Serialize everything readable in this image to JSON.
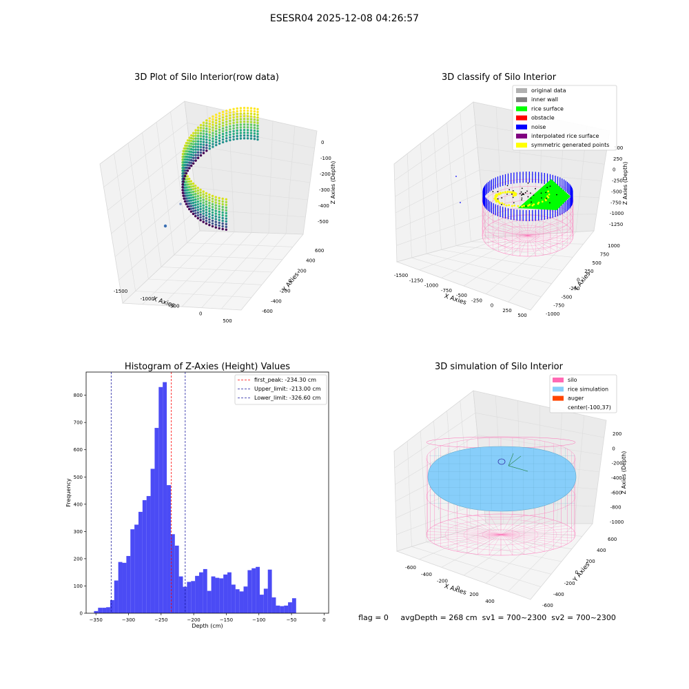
{
  "suptitle": "ESESR04 2025-12-08 04:26:57",
  "footer": "flag = 0     avgDepth = 268 cm  sv1 = 700~2300  sv2 = 700~2300",
  "colors": {
    "hist_bar": "#4b4bf5",
    "peak": "#ff0000",
    "limit": "#1a1aa0",
    "silo": "#ff69b4",
    "rice": "#87cefa",
    "auger": "#ff4500"
  },
  "chart_data": [
    {
      "type": "scatter",
      "title": "3D Plot of Silo Interior(row data)",
      "xlabel": "X Axies",
      "ylabel": "Y Axies",
      "zlabel": "Z Axies (Depth)",
      "xticks": [
        "-1500",
        "-1000",
        "-500",
        "0",
        "500"
      ],
      "yticks": [
        "-600",
        "-400",
        "-200",
        "0",
        "200",
        "400",
        "600"
      ],
      "zticks": [
        "0",
        "-100",
        "-200",
        "-300",
        "-400",
        "-500"
      ],
      "colormap": "viridis"
    },
    {
      "type": "scatter",
      "title": "3D classify of Silo Interior",
      "xlabel": "X Axies",
      "ylabel": "Y Axies",
      "zlabel": "Z Axies (Depth)",
      "xticks": [
        "-1500",
        "-1250",
        "-1000",
        "-750",
        "-500",
        "-250",
        "0",
        "250",
        "500"
      ],
      "yticks": [
        "-1000",
        "-750",
        "-500",
        "-250",
        "0",
        "250",
        "500",
        "750",
        "1000"
      ],
      "zticks": [
        "500",
        "250",
        "0",
        "-250",
        "-500",
        "-750",
        "-1000",
        "-1250"
      ],
      "legend": [
        {
          "label": "original data",
          "color": "#b0b0b0"
        },
        {
          "label": "inner wall",
          "color": "#808080"
        },
        {
          "label": "rice surface",
          "color": "#00ff00"
        },
        {
          "label": "obstacle",
          "color": "#ff0000"
        },
        {
          "label": "noise",
          "color": "#0000ff"
        },
        {
          "label": "interpolated rice surface",
          "color": "#800080"
        },
        {
          "label": "symmetric generated points",
          "color": "#ffff00"
        }
      ]
    },
    {
      "type": "bar",
      "title": "Histogram of Z-Axies (Height) Values",
      "xlabel": "Depth (cm)",
      "ylabel": "Frequency",
      "xlim": [
        -365,
        7
      ],
      "ylim": [
        0,
        885
      ],
      "xticks": [
        -350,
        -300,
        -250,
        -200,
        -150,
        -100,
        -50,
        0
      ],
      "yticks": [
        0,
        100,
        200,
        300,
        400,
        500,
        600,
        700,
        800
      ],
      "bin_width": 6.2,
      "bin_starts": [
        -352.9,
        -346.7,
        -340.5,
        -334.3,
        -328.1,
        -321.9,
        -315.7,
        -309.5,
        -303.3,
        -297.1,
        -290.9,
        -284.7,
        -278.5,
        -272.3,
        -266.1,
        -259.9,
        -253.7,
        -247.5,
        -241.3,
        -235.1,
        -228.9,
        -222.7,
        -216.5,
        -210.3,
        -204.1,
        -197.9,
        -191.7,
        -185.5,
        -179.3,
        -173.1,
        -166.9,
        -160.7,
        -154.5,
        -148.3,
        -142.1,
        -135.9,
        -129.7,
        -123.5,
        -117.3,
        -111.1,
        -104.9,
        -98.7,
        -92.5,
        -86.3,
        -80.1,
        -73.9,
        -67.7,
        -61.5,
        -55.3,
        -49.1,
        -42.9,
        -36.7,
        -30.5,
        -24.3,
        -18.1,
        -11.9,
        -5.7
      ],
      "values": [
        8,
        20,
        20,
        22,
        48,
        120,
        188,
        185,
        210,
        308,
        325,
        372,
        415,
        430,
        530,
        680,
        830,
        848,
        470,
        290,
        248,
        135,
        97,
        115,
        118,
        137,
        150,
        162,
        82,
        135,
        130,
        128,
        142,
        150,
        105,
        88,
        80,
        98,
        158,
        165,
        170,
        68,
        90,
        160,
        58,
        28,
        26,
        28,
        40,
        55,
        0,
        0,
        0,
        0,
        0,
        0,
        0
      ],
      "vlines": [
        {
          "label": "first_peak: -234.30 cm",
          "x": -234.3,
          "color": "#ff0000"
        },
        {
          "label": "Upper_limit: -213.00 cm",
          "x": -213.0,
          "color": "#1a1aa0"
        },
        {
          "label": "Lower_limit: -326.60 cm",
          "x": -326.6,
          "color": "#1a1aa0"
        }
      ]
    },
    {
      "type": "mesh",
      "title": "3D simulation of Silo Interior",
      "xlabel": "X Axies",
      "ylabel": "Y Axies",
      "zlabel": "Z Axies (Depth)",
      "xticks": [
        "-600",
        "-400",
        "-200",
        "0",
        "200",
        "400"
      ],
      "yticks": [
        "-600",
        "-400",
        "-200",
        "0",
        "200",
        "400",
        "600"
      ],
      "zticks": [
        "200",
        "0",
        "-200",
        "-400",
        "-600",
        "-800",
        "-1000"
      ],
      "legend": [
        {
          "label": "silo",
          "color": "#ff69b4"
        },
        {
          "label": "rice simulation",
          "color": "#87cefa"
        },
        {
          "label": "auger",
          "color": "#ff4500"
        },
        {
          "label": "center(-100,37)",
          "color": ""
        }
      ]
    }
  ]
}
